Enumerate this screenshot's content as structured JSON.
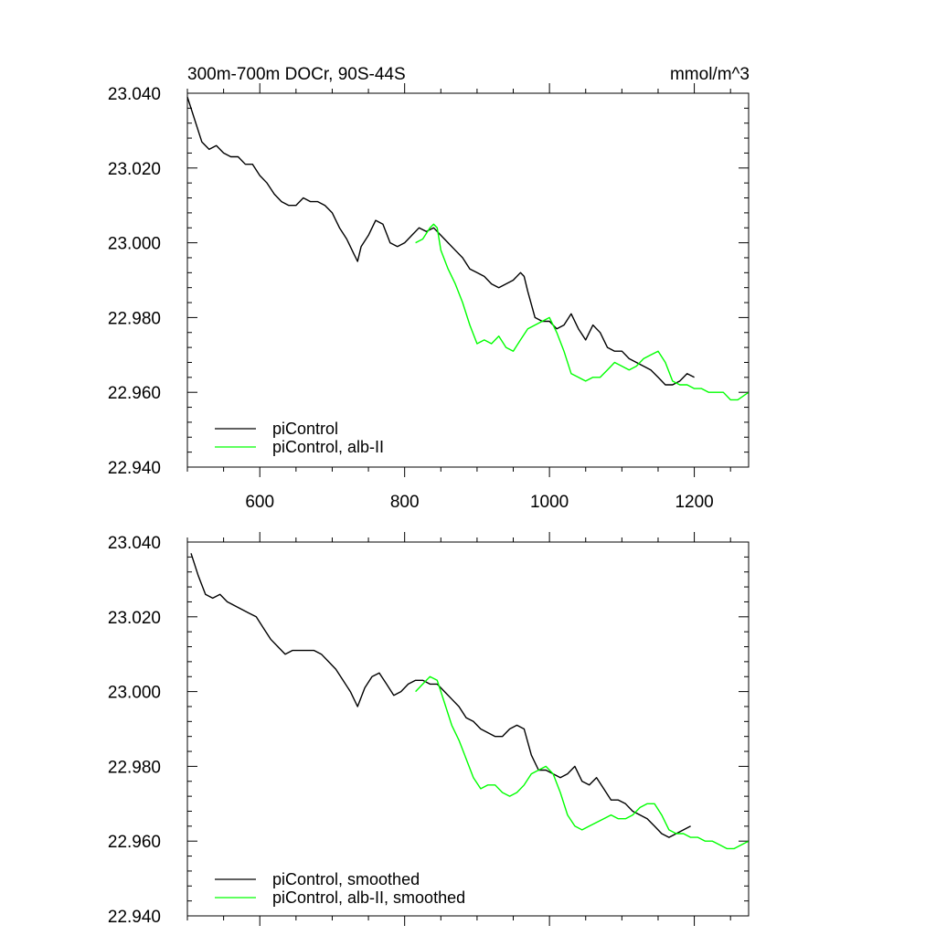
{
  "chart_data": [
    {
      "type": "line",
      "title": "300m-700m DOCr, 90S-44S",
      "units": "mmol/m^3",
      "xlim": [
        500,
        1275
      ],
      "ylim": [
        22.94,
        23.04
      ],
      "xticks": [
        600,
        800,
        1000,
        1200
      ],
      "xtick_labels": [
        "600",
        "800",
        "1000",
        "1200"
      ],
      "yticks": [
        22.94,
        22.96,
        22.98,
        23.0,
        23.02,
        23.04
      ],
      "ytick_labels": [
        "22.940",
        "22.960",
        "22.980",
        "23.000",
        "23.020",
        "23.040"
      ],
      "show_x_tick_labels": true,
      "legend_position": "bottom-left",
      "series": [
        {
          "name": "piControl",
          "color": "#000000",
          "x": [
            500,
            510,
            520,
            530,
            540,
            550,
            560,
            570,
            580,
            590,
            600,
            610,
            620,
            630,
            640,
            650,
            660,
            670,
            680,
            690,
            700,
            710,
            720,
            730,
            735,
            740,
            750,
            760,
            770,
            780,
            790,
            800,
            810,
            820,
            830,
            840,
            850,
            860,
            870,
            880,
            890,
            900,
            910,
            920,
            930,
            940,
            950,
            960,
            965,
            970,
            980,
            990,
            1000,
            1010,
            1020,
            1030,
            1040,
            1050,
            1060,
            1070,
            1080,
            1090,
            1100,
            1110,
            1120,
            1130,
            1140,
            1150,
            1160,
            1170,
            1180,
            1190,
            1200
          ],
          "y": [
            23.039,
            23.033,
            23.027,
            23.025,
            23.026,
            23.024,
            23.023,
            23.023,
            23.021,
            23.021,
            23.018,
            23.016,
            23.013,
            23.011,
            23.01,
            23.01,
            23.012,
            23.011,
            23.011,
            23.01,
            23.008,
            23.004,
            23.001,
            22.997,
            22.995,
            22.999,
            23.002,
            23.006,
            23.005,
            23.0,
            22.999,
            23.0,
            23.002,
            23.004,
            23.003,
            23.004,
            23.002,
            23.0,
            22.998,
            22.996,
            22.993,
            22.992,
            22.991,
            22.989,
            22.988,
            22.989,
            22.99,
            22.992,
            22.991,
            22.987,
            22.98,
            22.979,
            22.979,
            22.977,
            22.978,
            22.981,
            22.977,
            22.974,
            22.978,
            22.976,
            22.972,
            22.971,
            22.971,
            22.969,
            22.968,
            22.967,
            22.966,
            22.964,
            22.962,
            22.962,
            22.963,
            22.965,
            22.964
          ]
        },
        {
          "name": "piControl, alb-II",
          "color": "#00ff00",
          "x": [
            815,
            825,
            835,
            840,
            845,
            850,
            860,
            870,
            880,
            890,
            900,
            910,
            920,
            930,
            940,
            950,
            960,
            970,
            980,
            990,
            1000,
            1010,
            1020,
            1030,
            1040,
            1050,
            1060,
            1070,
            1080,
            1090,
            1100,
            1110,
            1120,
            1130,
            1140,
            1150,
            1160,
            1170,
            1180,
            1190,
            1200,
            1210,
            1220,
            1230,
            1240,
            1250,
            1260,
            1275
          ],
          "y": [
            23.0,
            23.001,
            23.004,
            23.005,
            23.004,
            22.998,
            22.993,
            22.989,
            22.984,
            22.978,
            22.973,
            22.974,
            22.973,
            22.975,
            22.972,
            22.971,
            22.974,
            22.977,
            22.978,
            22.979,
            22.98,
            22.976,
            22.971,
            22.965,
            22.964,
            22.963,
            22.964,
            22.964,
            22.966,
            22.968,
            22.967,
            22.966,
            22.967,
            22.969,
            22.97,
            22.971,
            22.968,
            22.963,
            22.962,
            22.962,
            22.961,
            22.961,
            22.96,
            22.96,
            22.96,
            22.958,
            22.958,
            22.96
          ]
        }
      ]
    },
    {
      "type": "line",
      "title": "",
      "units": "",
      "xlim": [
        500,
        1275
      ],
      "ylim": [
        22.94,
        23.04
      ],
      "xticks": [
        600,
        800,
        1000,
        1200
      ],
      "xtick_labels": [],
      "yticks": [
        22.94,
        22.96,
        22.98,
        23.0,
        23.02,
        23.04
      ],
      "ytick_labels": [
        "22.940",
        "22.960",
        "22.980",
        "23.000",
        "23.020",
        "23.040"
      ],
      "show_x_tick_labels": false,
      "legend_position": "bottom-left",
      "series": [
        {
          "name": "piControl, smoothed",
          "color": "#000000",
          "x": [
            505,
            515,
            525,
            535,
            545,
            555,
            565,
            575,
            585,
            595,
            605,
            615,
            625,
            635,
            645,
            655,
            665,
            675,
            685,
            695,
            705,
            715,
            725,
            735,
            745,
            755,
            765,
            775,
            785,
            795,
            805,
            815,
            825,
            835,
            845,
            855,
            865,
            875,
            885,
            895,
            905,
            915,
            925,
            935,
            945,
            955,
            965,
            975,
            985,
            995,
            1005,
            1015,
            1025,
            1035,
            1045,
            1055,
            1065,
            1075,
            1085,
            1095,
            1105,
            1115,
            1125,
            1135,
            1145,
            1155,
            1165,
            1175,
            1185,
            1195
          ],
          "y": [
            23.037,
            23.031,
            23.026,
            23.025,
            23.026,
            23.024,
            23.023,
            23.022,
            23.021,
            23.02,
            23.017,
            23.014,
            23.012,
            23.01,
            23.011,
            23.011,
            23.011,
            23.011,
            23.01,
            23.008,
            23.006,
            23.003,
            23.0,
            22.996,
            23.001,
            23.004,
            23.005,
            23.002,
            22.999,
            23.0,
            23.002,
            23.003,
            23.003,
            23.002,
            23.002,
            23.0,
            22.998,
            22.996,
            22.993,
            22.992,
            22.99,
            22.989,
            22.988,
            22.988,
            22.99,
            22.991,
            22.99,
            22.983,
            22.979,
            22.979,
            22.978,
            22.977,
            22.978,
            22.98,
            22.976,
            22.975,
            22.977,
            22.974,
            22.971,
            22.971,
            22.97,
            22.968,
            22.967,
            22.966,
            22.964,
            22.962,
            22.961,
            22.962,
            22.963,
            22.964
          ]
        },
        {
          "name": "piControl, alb-II, smoothed",
          "color": "#00ff00",
          "x": [
            815,
            825,
            835,
            845,
            855,
            865,
            875,
            885,
            895,
            905,
            915,
            925,
            935,
            945,
            955,
            965,
            975,
            985,
            995,
            1005,
            1015,
            1025,
            1035,
            1045,
            1055,
            1065,
            1075,
            1085,
            1095,
            1105,
            1115,
            1125,
            1135,
            1145,
            1155,
            1165,
            1175,
            1185,
            1195,
            1205,
            1215,
            1225,
            1235,
            1245,
            1255,
            1265,
            1275
          ],
          "y": [
            23.0,
            23.002,
            23.004,
            23.003,
            22.997,
            22.991,
            22.987,
            22.982,
            22.977,
            22.974,
            22.975,
            22.975,
            22.973,
            22.972,
            22.973,
            22.975,
            22.978,
            22.979,
            22.98,
            22.978,
            22.973,
            22.967,
            22.964,
            22.963,
            22.964,
            22.965,
            22.966,
            22.967,
            22.966,
            22.966,
            22.967,
            22.969,
            22.97,
            22.97,
            22.967,
            22.963,
            22.962,
            22.962,
            22.961,
            22.961,
            22.96,
            22.96,
            22.959,
            22.958,
            22.958,
            22.959,
            22.96
          ]
        }
      ]
    }
  ]
}
